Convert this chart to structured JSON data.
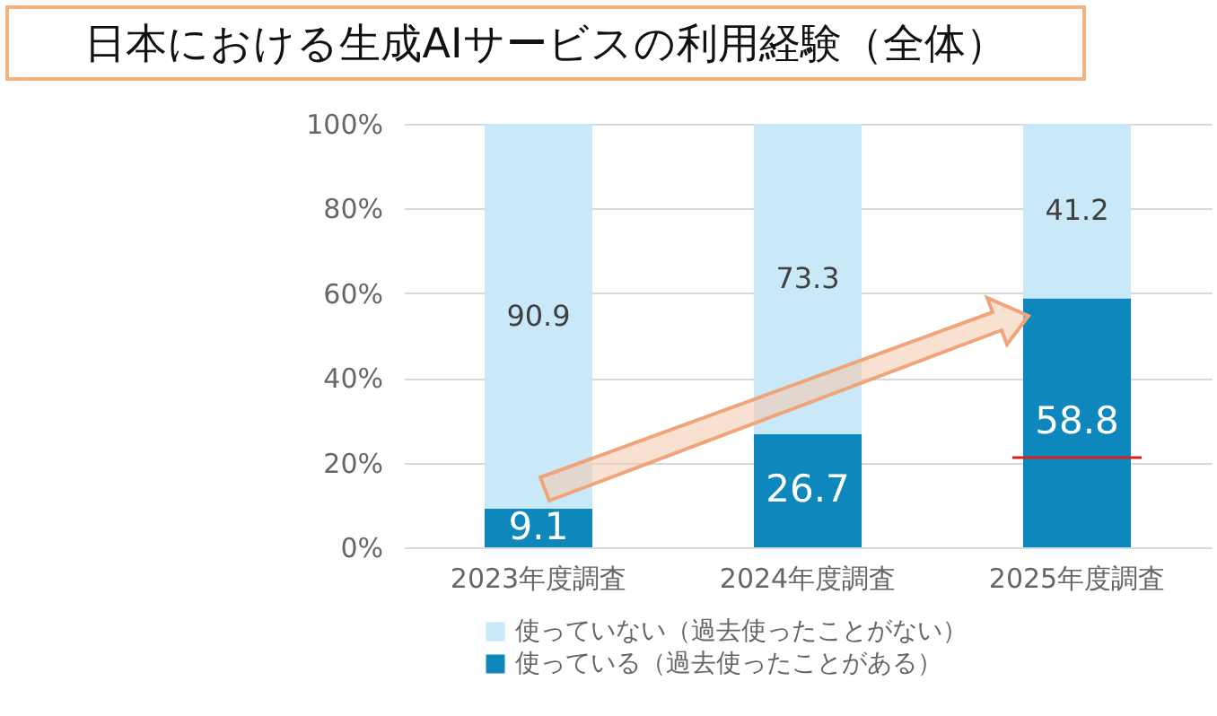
{
  "chart_data": {
    "type": "bar",
    "title": "日本における生成AIサービスの利用経験（全体）",
    "categories": [
      "2023年度調査",
      "2024年度調査",
      "2025年度調査"
    ],
    "stacked": true,
    "series": [
      {
        "name": "使っている（過去使ったことがある）",
        "color": "#0e87bc",
        "values": [
          9.1,
          26.7,
          58.8
        ]
      },
      {
        "name": "使っていない（過去使ったことがない）",
        "color": "#c9e9f8",
        "values": [
          90.9,
          73.3,
          41.2
        ]
      }
    ],
    "ylim": [
      0,
      100
    ],
    "yticks": [
      {
        "value": 0,
        "label": "0%"
      },
      {
        "value": 20,
        "label": "20%"
      },
      {
        "value": 40,
        "label": "40%"
      },
      {
        "value": 60,
        "label": "60%"
      },
      {
        "value": 80,
        "label": "80%"
      },
      {
        "value": 100,
        "label": "100%"
      }
    ],
    "grid": "y",
    "legend": "bottom",
    "data_labels": true
  }
}
